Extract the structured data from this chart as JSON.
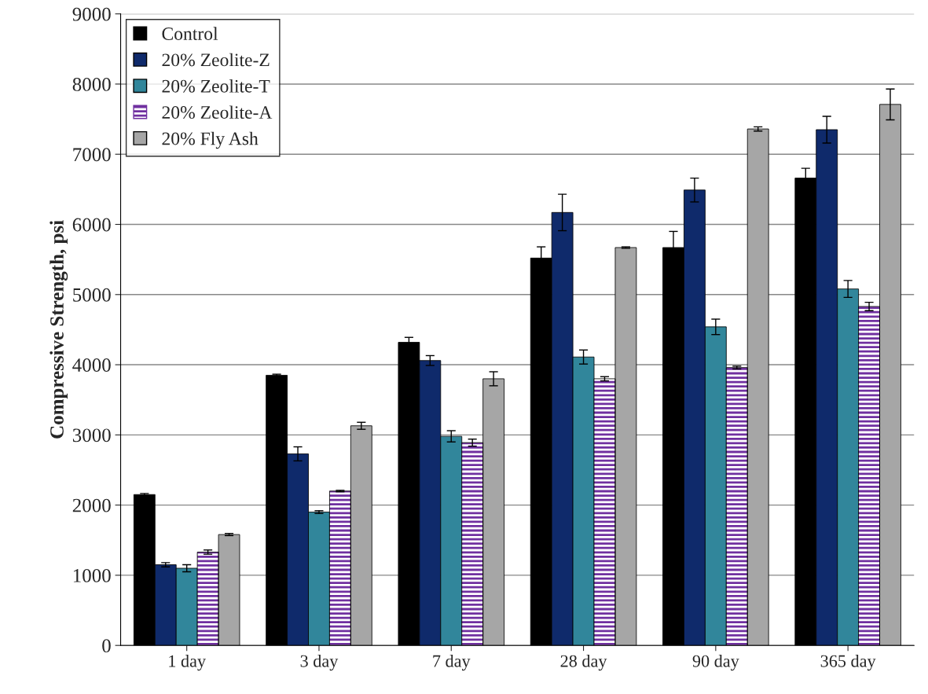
{
  "chart_data": {
    "type": "bar",
    "ylabel": "Compressive Strength, psi",
    "categories": [
      "1 day",
      "3 day",
      "7 day",
      "28 day",
      "90 day",
      "365 day"
    ],
    "series": [
      {
        "name": "Control",
        "color": "#000000",
        "values": [
          2150,
          3850,
          4320,
          5520,
          5670,
          6660
        ],
        "errors": [
          15,
          15,
          70,
          160,
          230,
          140
        ]
      },
      {
        "name": "20% Zeolite-Z",
        "color": "#0f2a6b",
        "values": [
          1150,
          2730,
          4060,
          6170,
          6490,
          7350
        ],
        "errors": [
          30,
          100,
          70,
          260,
          170,
          190
        ]
      },
      {
        "name": "20% Zeolite-T",
        "color": "#31869b",
        "values": [
          1100,
          1900,
          2980,
          4110,
          4540,
          5080
        ],
        "errors": [
          50,
          20,
          80,
          100,
          110,
          120
        ]
      },
      {
        "name": "20% Zeolite-A",
        "color": "#7030a0",
        "values": [
          1330,
          2200,
          2890,
          3800,
          3960,
          4830
        ],
        "errors": [
          30,
          10,
          50,
          30,
          20,
          60
        ]
      },
      {
        "name": "20% Fly Ash",
        "color": "#a6a6a6",
        "values": [
          1580,
          3130,
          3800,
          5670,
          7360,
          7710
        ],
        "errors": [
          15,
          50,
          100,
          10,
          30,
          220
        ]
      }
    ],
    "ylim": [
      0,
      9000
    ],
    "yticks": [
      0,
      1000,
      2000,
      3000,
      4000,
      5000,
      6000,
      7000,
      8000,
      9000
    ],
    "grid": "y",
    "legend": "top left"
  }
}
